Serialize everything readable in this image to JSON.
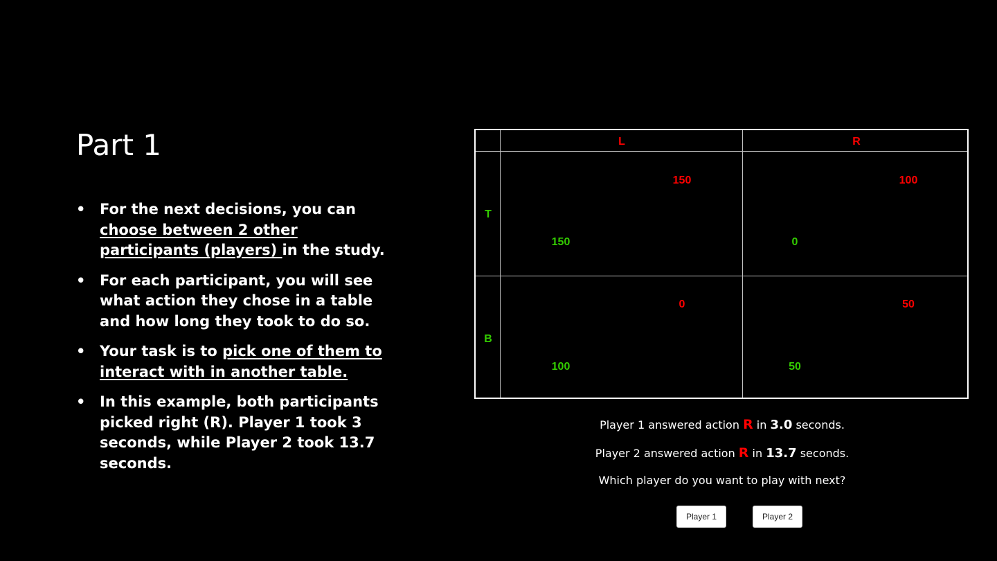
{
  "title": "Part 1",
  "bullets": {
    "b1": {
      "pre": "For the next decisions, you can ",
      "underline": "choose between 2 other participants (players) ",
      "post": "in the study."
    },
    "b2": {
      "text": "For each participant, you will see what action they chose in a table and how long they took to do so."
    },
    "b3": {
      "pre": "Your task is to ",
      "underline": "pick one of them to interact with in another table."
    },
    "b4": {
      "text": "In this example, both participants picked right (R). Player 1 took 3 seconds, while Player 2 took 13.7 seconds."
    },
    "marker": "•"
  },
  "table": {
    "col_headers": [
      "L",
      "R"
    ],
    "row_headers": [
      "T",
      "B"
    ],
    "cells": {
      "TL": {
        "red": "150",
        "green": "150"
      },
      "TR": {
        "red": "100",
        "green": "0"
      },
      "BL": {
        "red": "0",
        "green": "100"
      },
      "BR": {
        "red": "50",
        "green": "50"
      }
    },
    "colors": {
      "player_red": "#ff0000",
      "player_green": "#33cc00"
    }
  },
  "info": {
    "p1": {
      "pre": "Player 1 answered action ",
      "action": "R",
      "mid": " in ",
      "time": "3.0",
      "post": " seconds."
    },
    "p2": {
      "pre": "Player 2 answered action ",
      "action": "R",
      "mid": " in ",
      "time": "13.7",
      "post": " seconds."
    },
    "question": "Which player do you want to play with next?"
  },
  "buttons": {
    "player1": "Player 1",
    "player2": "Player 2"
  }
}
